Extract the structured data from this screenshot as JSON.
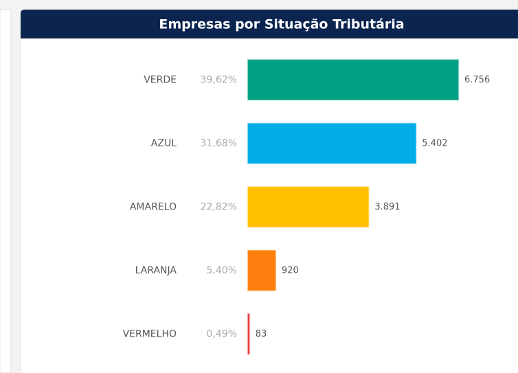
{
  "chart_data": {
    "type": "bar",
    "orientation": "horizontal",
    "title": "Empresas por Situação Tributária",
    "categories": [
      "VERDE",
      "AZUL",
      "AMARELO",
      "LARANJA",
      "VERMELHO"
    ],
    "values": [
      6756,
      5402,
      3891,
      920,
      83
    ],
    "value_labels": [
      "6.756",
      "5.402",
      "3.891",
      "920",
      "83"
    ],
    "shares": [
      39.62,
      31.68,
      22.82,
      5.4,
      0.49
    ],
    "share_labels": [
      "39,62%",
      "31,68%",
      "22,82%",
      "5,40%",
      "0,49%"
    ],
    "colors": [
      "#00a082",
      "#00ade6",
      "#ffc000",
      "#ff7f0e",
      "#e8383a"
    ]
  }
}
